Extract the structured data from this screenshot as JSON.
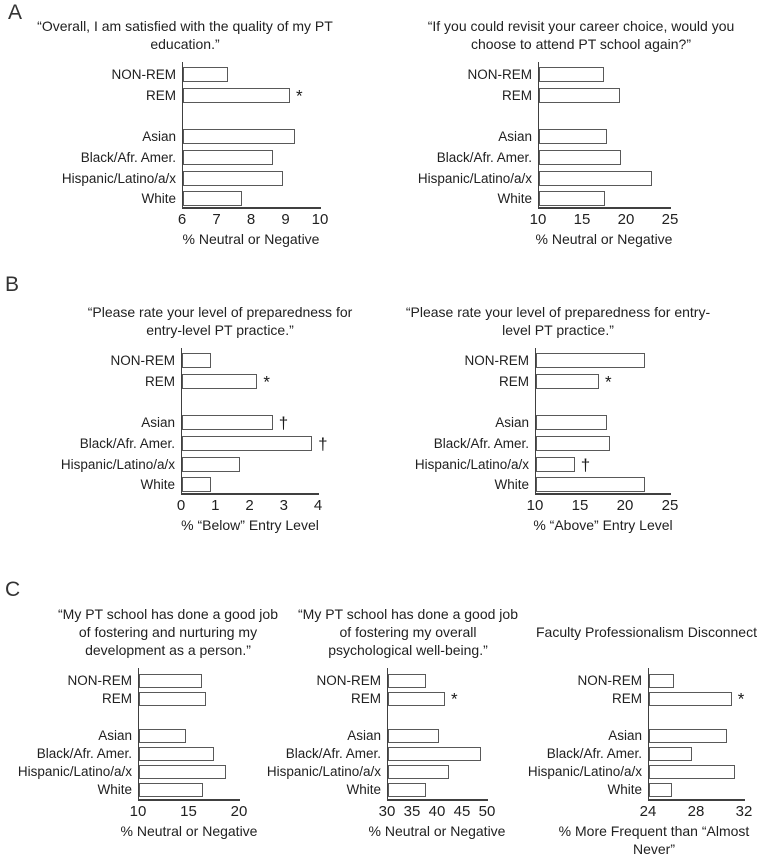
{
  "figure": {
    "panels": [
      {
        "label": "A"
      },
      {
        "label": "B"
      },
      {
        "label": "C"
      }
    ],
    "colors": {
      "background": "#ffffff",
      "text": "#212121",
      "axis": "#404040",
      "bar_fill": "#ffffff",
      "bar_border": "#595959"
    },
    "significance_symbols": [
      "*",
      "†"
    ]
  },
  "chart_data": [
    {
      "panel": "A",
      "type": "bar",
      "orientation": "horizontal",
      "title": "“Overall, I am satisfied with the quality of my PT education.”",
      "xlabel": "% Neutral or Negative",
      "xlim": [
        6,
        10
      ],
      "ticks": [
        6,
        7,
        8,
        9,
        10
      ],
      "grid": false,
      "categories": [
        "NON-REM",
        "REM",
        "Asian",
        "Black/Afr. Amer.",
        "Hispanic/Latino/a/x",
        "White"
      ],
      "values": [
        7.3,
        9.1,
        9.25,
        8.6,
        8.9,
        7.7
      ],
      "markers": [
        "",
        "*",
        "",
        "",
        "",
        ""
      ]
    },
    {
      "panel": "A",
      "type": "bar",
      "orientation": "horizontal",
      "title": "“If you could revisit your career choice, would you choose to attend PT school again?”",
      "xlabel": "% Neutral or Negative",
      "xlim": [
        10,
        25
      ],
      "ticks": [
        10,
        15,
        20,
        25
      ],
      "grid": false,
      "categories": [
        "NON-REM",
        "REM",
        "Asian",
        "Black/Afr. Amer.",
        "Hispanic/Latino/a/x",
        "White"
      ],
      "values": [
        17.4,
        19.2,
        17.7,
        19.3,
        22.8,
        17.5
      ],
      "markers": [
        "",
        "",
        "",
        "",
        "",
        ""
      ]
    },
    {
      "panel": "B",
      "type": "bar",
      "orientation": "horizontal",
      "title": "“Please rate your level of preparedness for entry-level PT practice.”",
      "xlabel": "% “Below” Entry Level",
      "xlim": [
        0,
        4
      ],
      "ticks": [
        0,
        1,
        2,
        3,
        4
      ],
      "grid": false,
      "categories": [
        "NON-REM",
        "REM",
        "Asian",
        "Black/Afr. Amer.",
        "Hispanic/Latino/a/x",
        "White"
      ],
      "values": [
        0.85,
        2.2,
        2.65,
        3.8,
        1.7,
        0.85
      ],
      "markers": [
        "",
        "*",
        "†",
        "†",
        "",
        ""
      ]
    },
    {
      "panel": "B",
      "type": "bar",
      "orientation": "horizontal",
      "title": "“Please rate your level of preparedness for entry-level PT practice.”",
      "xlabel": "% “Above” Entry Level",
      "xlim": [
        10,
        25
      ],
      "ticks": [
        10,
        15,
        20,
        25
      ],
      "grid": false,
      "categories": [
        "NON-REM",
        "REM",
        "Asian",
        "Black/Afr. Amer.",
        "Hispanic/Latino/a/x",
        "White"
      ],
      "values": [
        22.1,
        17.0,
        17.9,
        18.2,
        14.3,
        22.1
      ],
      "markers": [
        "",
        "*",
        "",
        "",
        "†",
        ""
      ]
    },
    {
      "panel": "C",
      "type": "bar",
      "orientation": "horizontal",
      "title": "“My PT school has done a good job of fostering and nurturing my development as a person.”",
      "xlabel": "% Neutral or Negative",
      "xlim": [
        10,
        20
      ],
      "ticks": [
        10,
        15,
        20
      ],
      "grid": false,
      "categories": [
        "NON-REM",
        "REM",
        "Asian",
        "Black/Afr. Amer.",
        "Hispanic/Latino/a/x",
        "White"
      ],
      "values": [
        16.2,
        16.6,
        14.7,
        17.4,
        18.6,
        16.3
      ],
      "markers": [
        "",
        "",
        "",
        "",
        "",
        ""
      ]
    },
    {
      "panel": "C",
      "type": "bar",
      "orientation": "horizontal",
      "title": "“My PT school has done a good job of fostering my overall psychological well-being.”",
      "xlabel": "% Neutral or Negative",
      "xlim": [
        30,
        50
      ],
      "ticks": [
        30,
        35,
        40,
        45,
        50
      ],
      "grid": false,
      "categories": [
        "NON-REM",
        "REM",
        "Asian",
        "Black/Afr. Amer.",
        "Hispanic/Latino/a/x",
        "White"
      ],
      "values": [
        37.5,
        41.4,
        40.2,
        48.5,
        42.2,
        37.6
      ],
      "markers": [
        "",
        "*",
        "",
        "",
        "",
        ""
      ]
    },
    {
      "panel": "C",
      "type": "bar",
      "orientation": "horizontal",
      "title": "Faculty Professionalism Disconnects",
      "xlabel": "% More Frequent than “Almost Never”",
      "xlim": [
        24,
        32
      ],
      "ticks": [
        24,
        28,
        32
      ],
      "grid": false,
      "categories": [
        "NON-REM",
        "REM",
        "Asian",
        "Black/Afr. Amer.",
        "Hispanic/Latino/a/x",
        "White"
      ],
      "values": [
        26.1,
        30.9,
        30.5,
        27.6,
        31.2,
        25.9
      ],
      "markers": [
        "",
        "*",
        "",
        "",
        "",
        ""
      ]
    }
  ]
}
